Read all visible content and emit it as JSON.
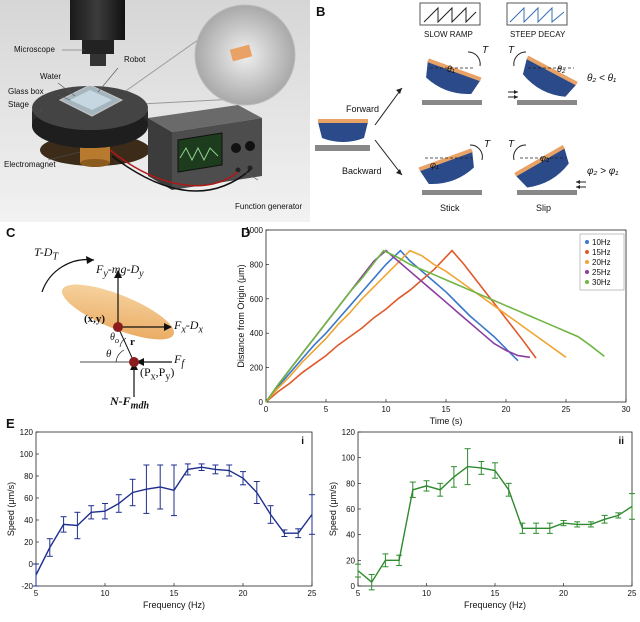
{
  "panels": {
    "A": {
      "letter": "A",
      "labels": {
        "microscope": "Microscope",
        "robot": "Robot",
        "water": "Water",
        "glass_box": "Glass box",
        "stage": "Stage",
        "electromagnet": "Electromagnet",
        "function_generator": "Function generator"
      }
    },
    "B": {
      "letter": "B",
      "slow_ramp": "SLOW RAMP",
      "steep_decay": "STEEP DECAY",
      "forward": "Forward",
      "backward": "Backward",
      "stick": "Stick",
      "slip": "Slip",
      "torque": "T",
      "theta1": "θ₁",
      "theta2": "θ₂",
      "phi1": "φ₁",
      "phi2": "φ₂",
      "eq_forward": "θ₂ < θ₁",
      "eq_backward": "φ₂ > φ₁"
    },
    "C": {
      "letter": "C",
      "torque_label": "T-D",
      "torque_sub": "T",
      "fy_label": "F",
      "fy_sub": "y",
      "fy_rest": "-mg-D",
      "fy_rest_sub": "y",
      "fx_label": "F",
      "fx_sub": "x",
      "fx_rest": "-D",
      "fx_rest_sub": "x",
      "ff_label": "F",
      "ff_sub": "f",
      "xy_label": "(x,y)",
      "r_label": "r",
      "theta_label": "θ",
      "theta_o_label": "θ",
      "theta_o_sub": "o",
      "p_label": "(P",
      "p_sub_x": "x",
      "p_comma": ",P",
      "p_sub_y": "y",
      "p_close": ")",
      "n_label": "N-F",
      "n_sub": "mdh"
    },
    "D": {
      "letter": "D"
    },
    "E": {
      "letter": "E"
    }
  },
  "chart_data": [
    {
      "id": "D",
      "type": "line",
      "xlabel": "Time (s)",
      "ylabel": "Distance from Origin (μm)",
      "xlim": [
        0,
        30
      ],
      "ylim": [
        0,
        1000
      ],
      "xticks": [
        0,
        5,
        10,
        15,
        20,
        25,
        30
      ],
      "yticks": [
        0,
        200,
        400,
        600,
        800,
        1000
      ],
      "grid": false,
      "legend_position": "top-right",
      "series": [
        {
          "name": "10Hz",
          "color": "#3a78c9",
          "x": [
            0,
            1,
            2,
            3,
            4,
            5,
            6,
            7,
            8,
            9,
            10,
            11.2,
            12,
            13,
            14,
            15,
            16,
            17,
            18,
            19,
            20,
            21
          ],
          "y": [
            0,
            90,
            170,
            250,
            330,
            400,
            480,
            560,
            640,
            720,
            800,
            880,
            820,
            760,
            700,
            640,
            570,
            500,
            440,
            380,
            310,
            240
          ]
        },
        {
          "name": "15Hz",
          "color": "#e0592a",
          "x": [
            0,
            1,
            2,
            3,
            4,
            5,
            6,
            7,
            8,
            9,
            10,
            11,
            12,
            13,
            14,
            15.5,
            16.5,
            17.5,
            18.5,
            19.5,
            20.5,
            21.5,
            22.5
          ],
          "y": [
            0,
            60,
            110,
            170,
            220,
            270,
            330,
            380,
            430,
            490,
            540,
            600,
            650,
            710,
            770,
            880,
            800,
            710,
            620,
            530,
            440,
            350,
            255
          ]
        },
        {
          "name": "20Hz",
          "color": "#f0a534",
          "x": [
            0,
            1,
            2,
            3,
            4,
            5,
            6,
            7,
            8,
            9,
            10,
            11,
            12,
            13,
            14,
            15,
            16,
            17,
            18,
            19,
            20,
            21,
            22,
            23,
            24,
            25
          ],
          "y": [
            0,
            80,
            150,
            230,
            300,
            370,
            450,
            520,
            600,
            670,
            740,
            810,
            880,
            850,
            800,
            760,
            710,
            660,
            610,
            560,
            510,
            460,
            410,
            360,
            310,
            260
          ]
        },
        {
          "name": "25Hz",
          "color": "#8a3fa0",
          "x": [
            0,
            1,
            2,
            3,
            4,
            5,
            6,
            7,
            8,
            9,
            10,
            11,
            12,
            13,
            14,
            15,
            16,
            17,
            18,
            19,
            20,
            21,
            22
          ],
          "y": [
            0,
            100,
            190,
            280,
            370,
            460,
            550,
            640,
            730,
            820,
            880,
            820,
            760,
            700,
            640,
            580,
            520,
            460,
            400,
            340,
            300,
            270,
            260
          ]
        },
        {
          "name": "30Hz",
          "color": "#6fb642",
          "x": [
            0,
            1,
            2,
            3,
            4,
            5,
            6,
            7,
            8,
            9,
            9.8,
            11,
            12,
            13,
            14,
            15,
            16,
            17,
            18,
            19,
            20,
            21,
            22,
            23,
            24,
            25,
            26,
            27,
            28.2
          ],
          "y": [
            0,
            100,
            190,
            280,
            370,
            460,
            550,
            640,
            720,
            810,
            880,
            840,
            800,
            770,
            740,
            710,
            680,
            650,
            620,
            590,
            560,
            530,
            500,
            470,
            440,
            410,
            380,
            330,
            265
          ]
        }
      ]
    },
    {
      "id": "E-i",
      "type": "line",
      "corner_label": "i",
      "xlabel": "Frequency (Hz)",
      "ylabel": "Speed (μm/s)",
      "xlim": [
        5,
        25
      ],
      "ylim": [
        -20,
        120
      ],
      "xticks": [
        5,
        10,
        15,
        20,
        25
      ],
      "yticks": [
        -20,
        0,
        20,
        40,
        60,
        80,
        100,
        120
      ],
      "grid": false,
      "color": "#1f2f8f",
      "x": [
        5,
        6,
        7,
        8,
        9,
        10,
        11,
        12,
        13,
        14,
        15,
        16,
        17,
        18,
        19,
        20,
        21,
        22,
        23,
        24,
        25
      ],
      "y": [
        -10,
        15,
        36,
        35,
        47,
        48,
        55,
        65,
        68,
        70,
        67,
        86,
        88,
        86,
        85,
        78,
        65,
        45,
        28,
        28,
        45
      ],
      "err": [
        10,
        8,
        7,
        12,
        6,
        7,
        8,
        12,
        22,
        20,
        23,
        5,
        3,
        4,
        5,
        6,
        10,
        8,
        3,
        4,
        18
      ]
    },
    {
      "id": "E-ii",
      "type": "line",
      "corner_label": "ii",
      "xlabel": "Frequency (Hz)",
      "ylabel": "Speed (μm/s)",
      "xlim": [
        5,
        25
      ],
      "ylim": [
        0,
        120
      ],
      "xticks": [
        5,
        10,
        15,
        20,
        25
      ],
      "yticks": [
        0,
        20,
        40,
        60,
        80,
        100,
        120
      ],
      "grid": false,
      "color": "#2e8a2e",
      "x": [
        5,
        6,
        7,
        8,
        9,
        10,
        11,
        12,
        13,
        14,
        15,
        16,
        17,
        18,
        19,
        20,
        21,
        22,
        23,
        24,
        25
      ],
      "y": [
        12,
        3,
        20,
        20,
        75,
        78,
        75,
        85,
        93,
        92,
        90,
        75,
        45,
        45,
        45,
        49,
        48,
        48,
        52,
        55,
        62
      ],
      "err": [
        5,
        6,
        5,
        4,
        6,
        4,
        5,
        8,
        14,
        5,
        6,
        5,
        4,
        4,
        4,
        2,
        2,
        2,
        3,
        2,
        10
      ]
    }
  ]
}
